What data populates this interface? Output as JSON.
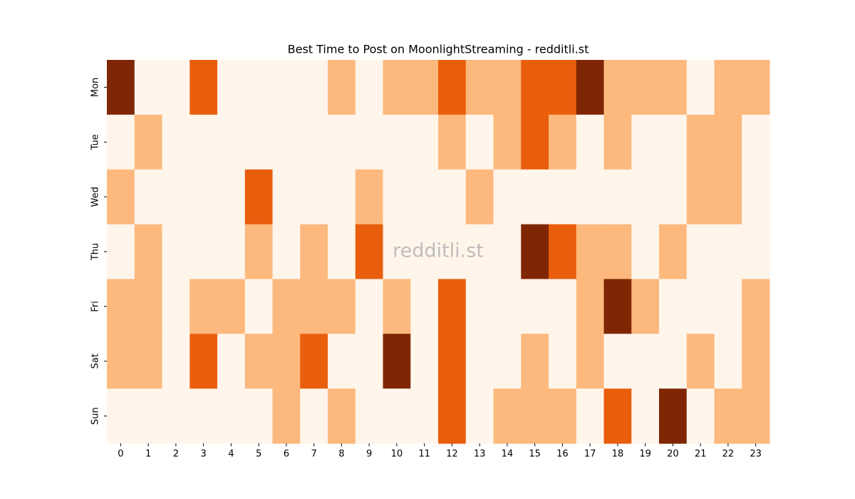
{
  "chart_data": {
    "type": "heatmap",
    "title": "Best Time to Post on MoonlightStreaming - redditli.st",
    "watermark": "redditli.st",
    "columns": [
      0,
      1,
      2,
      3,
      4,
      5,
      6,
      7,
      8,
      9,
      10,
      11,
      12,
      13,
      14,
      15,
      16,
      17,
      18,
      19,
      20,
      21,
      22,
      23
    ],
    "rows": [
      "Mon",
      "Tue",
      "Wed",
      "Thu",
      "Fri",
      "Sat",
      "Sun"
    ],
    "colors": [
      "#fff5eb",
      "#fdb97d",
      "#e95e0d",
      "#7f2704"
    ],
    "values": [
      [
        3,
        0,
        0,
        2,
        0,
        0,
        0,
        0,
        1,
        0,
        1,
        1,
        2,
        1,
        1,
        2,
        2,
        3,
        1,
        1,
        1,
        0,
        1,
        1
      ],
      [
        0,
        1,
        0,
        0,
        0,
        0,
        0,
        0,
        0,
        0,
        0,
        0,
        1,
        0,
        1,
        2,
        1,
        0,
        1,
        0,
        0,
        1,
        1,
        0
      ],
      [
        1,
        0,
        0,
        0,
        0,
        2,
        0,
        0,
        0,
        1,
        0,
        0,
        0,
        1,
        0,
        0,
        0,
        0,
        0,
        0,
        0,
        1,
        1,
        0
      ],
      [
        0,
        1,
        0,
        0,
        0,
        1,
        0,
        1,
        0,
        2,
        0,
        0,
        0,
        0,
        0,
        3,
        2,
        1,
        1,
        0,
        1,
        0,
        0,
        0
      ],
      [
        1,
        1,
        0,
        1,
        1,
        0,
        1,
        1,
        1,
        0,
        1,
        0,
        2,
        0,
        0,
        0,
        0,
        1,
        3,
        1,
        0,
        0,
        0,
        1
      ],
      [
        1,
        1,
        0,
        2,
        0,
        1,
        1,
        2,
        0,
        0,
        3,
        0,
        2,
        0,
        0,
        1,
        0,
        1,
        0,
        0,
        0,
        1,
        0,
        1
      ],
      [
        0,
        0,
        0,
        0,
        0,
        0,
        1,
        0,
        1,
        0,
        0,
        0,
        2,
        0,
        1,
        1,
        1,
        0,
        2,
        0,
        3,
        0,
        1,
        1
      ]
    ]
  }
}
